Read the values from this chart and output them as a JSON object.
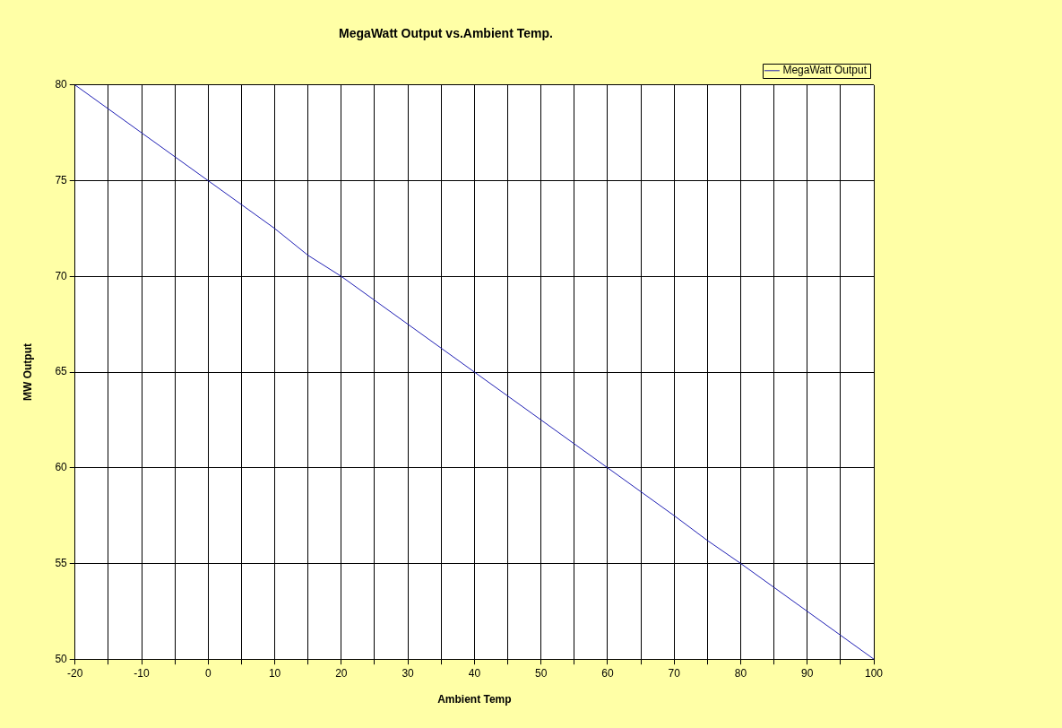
{
  "chart_data": {
    "type": "line",
    "title": "MegaWatt Output vs.Ambient Temp.",
    "xlabel": "Ambient Temp",
    "ylabel": "MW Output",
    "x": [
      -20,
      -15,
      -10,
      -5,
      0,
      5,
      10,
      15,
      20,
      25,
      30,
      35,
      40,
      45,
      50,
      55,
      60,
      65,
      70,
      75,
      80,
      85,
      90,
      95,
      100
    ],
    "series": [
      {
        "name": "MegaWatt Output",
        "color": "#1f1fb4",
        "values": [
          80,
          78.75,
          77.5,
          76.25,
          75,
          73.75,
          72.5,
          71.1,
          70,
          68.75,
          67.5,
          66.25,
          65,
          63.75,
          62.5,
          61.25,
          60,
          58.75,
          57.5,
          56.2,
          55,
          53.75,
          52.5,
          51.25,
          50
        ]
      }
    ],
    "xlim": [
      -20,
      100
    ],
    "xticks": [
      -20,
      {
        "value": -15,
        "label": null
      },
      -10,
      {
        "value": -5,
        "label": null
      },
      0,
      {
        "value": 5,
        "label": null
      },
      10,
      {
        "value": 15,
        "label": null
      },
      20,
      {
        "value": 25,
        "label": null
      },
      30,
      {
        "value": 35,
        "label": null
      },
      40,
      {
        "value": 45,
        "label": null
      },
      50,
      {
        "value": 55,
        "label": null
      },
      60,
      {
        "value": 65,
        "label": null
      },
      70,
      {
        "value": 75,
        "label": null
      },
      80,
      {
        "value": 85,
        "label": null
      },
      90,
      {
        "value": 95,
        "label": null
      },
      100
    ],
    "ylim": [
      50,
      80
    ],
    "yticks": [
      50,
      55,
      60,
      65,
      70,
      75,
      80
    ],
    "grid": true,
    "legend": "top right",
    "marker": "none",
    "line_style": "solid"
  }
}
